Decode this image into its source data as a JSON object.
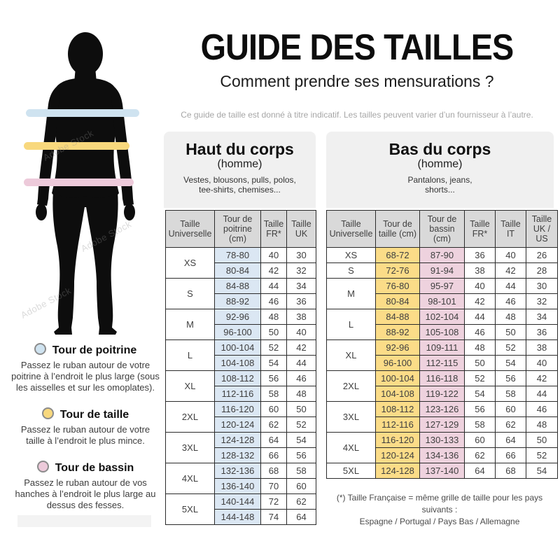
{
  "watermark": "Adobe Stock",
  "header": {
    "title": "GUIDE DES TAILLES",
    "subtitle": "Comment prendre ses mensurations ?",
    "disclaimer": "Ce guide de taille est donné à titre indicatif. Les tailles peuvent varier d’un fournisseur à l’autre."
  },
  "legend": {
    "items": [
      {
        "label": "Tour de poitrine",
        "color": "#cfe3f0",
        "description": "Passez le ruban autour de votre poitrine à l’endroit le plus large (sous les aisselles et sur les omoplates)."
      },
      {
        "label": "Tour de taille",
        "color": "#f8d87d",
        "description": "Passez le ruban autour de votre taille à l’endroit le plus mince."
      },
      {
        "label": "Tour de bassin",
        "color": "#edcada",
        "description": "Passez le ruban autour de vos hanches à l’endroit le plus large au dessus des fesses."
      }
    ]
  },
  "tables": {
    "upper": {
      "title": "Haut du corps",
      "subtitle": "(homme)",
      "description": "Vestes, blousons, pulls, polos, tee-shirts, chemises...",
      "columns": [
        "Taille Universelle",
        "Tour de poitrine (cm)",
        "Taille FR*",
        "Taille UK"
      ],
      "groups": [
        {
          "size": "XS",
          "rows": [
            [
              "78-80",
              "40",
              "30"
            ],
            [
              "80-84",
              "42",
              "32"
            ]
          ]
        },
        {
          "size": "S",
          "rows": [
            [
              "84-88",
              "44",
              "34"
            ],
            [
              "88-92",
              "46",
              "36"
            ]
          ]
        },
        {
          "size": "M",
          "rows": [
            [
              "92-96",
              "48",
              "38"
            ],
            [
              "96-100",
              "50",
              "40"
            ]
          ]
        },
        {
          "size": "L",
          "rows": [
            [
              "100-104",
              "52",
              "42"
            ],
            [
              "104-108",
              "54",
              "44"
            ]
          ]
        },
        {
          "size": "XL",
          "rows": [
            [
              "108-112",
              "56",
              "46"
            ],
            [
              "112-116",
              "58",
              "48"
            ]
          ]
        },
        {
          "size": "2XL",
          "rows": [
            [
              "116-120",
              "60",
              "50"
            ],
            [
              "120-124",
              "62",
              "52"
            ]
          ]
        },
        {
          "size": "3XL",
          "rows": [
            [
              "124-128",
              "64",
              "54"
            ],
            [
              "128-132",
              "66",
              "56"
            ]
          ]
        },
        {
          "size": "4XL",
          "rows": [
            [
              "132-136",
              "68",
              "58"
            ],
            [
              "136-140",
              "70",
              "60"
            ]
          ]
        },
        {
          "size": "5XL",
          "rows": [
            [
              "140-144",
              "72",
              "62"
            ],
            [
              "144-148",
              "74",
              "64"
            ]
          ]
        }
      ]
    },
    "lower": {
      "title": "Bas du corps",
      "subtitle": "(homme)",
      "description": "Pantalons, jeans, shorts...",
      "columns": [
        "Taille Universelle",
        "Tour de taille (cm)",
        "Tour de bassin (cm)",
        "Taille FR*",
        "Taille IT",
        "Taille UK / US"
      ],
      "groups": [
        {
          "size": "XS",
          "rows": [
            [
              "68-72",
              "87-90",
              "36",
              "40",
              "26"
            ]
          ]
        },
        {
          "size": "S",
          "rows": [
            [
              "72-76",
              "91-94",
              "38",
              "42",
              "28"
            ]
          ]
        },
        {
          "size": "M",
          "rows": [
            [
              "76-80",
              "95-97",
              "40",
              "44",
              "30"
            ],
            [
              "80-84",
              "98-101",
              "42",
              "46",
              "32"
            ]
          ]
        },
        {
          "size": "L",
          "rows": [
            [
              "84-88",
              "102-104",
              "44",
              "48",
              "34"
            ],
            [
              "88-92",
              "105-108",
              "46",
              "50",
              "36"
            ]
          ]
        },
        {
          "size": "XL",
          "rows": [
            [
              "92-96",
              "109-111",
              "48",
              "52",
              "38"
            ],
            [
              "96-100",
              "112-115",
              "50",
              "54",
              "40"
            ]
          ]
        },
        {
          "size": "2XL",
          "rows": [
            [
              "100-104",
              "116-118",
              "52",
              "56",
              "42"
            ],
            [
              "104-108",
              "119-122",
              "54",
              "58",
              "44"
            ]
          ]
        },
        {
          "size": "3XL",
          "rows": [
            [
              "108-112",
              "123-126",
              "56",
              "60",
              "46"
            ],
            [
              "112-116",
              "127-129",
              "58",
              "62",
              "48"
            ]
          ]
        },
        {
          "size": "4XL",
          "rows": [
            [
              "116-120",
              "130-133",
              "60",
              "64",
              "50"
            ],
            [
              "120-124",
              "134-136",
              "62",
              "66",
              "52"
            ]
          ]
        },
        {
          "size": "5XL",
          "rows": [
            [
              "124-128",
              "137-140",
              "64",
              "68",
              "54"
            ]
          ]
        }
      ]
    }
  },
  "footnote": {
    "line1": "(*) Taille Française = même grille de taille pour les pays suivants :",
    "line2": "Espagne / Portugal / Pays Bas / Allemagne"
  },
  "colors": {
    "chest_band": "#cfe3f0",
    "waist_band": "#f8d87d",
    "hip_band": "#edcada",
    "chest_cell": "#dbe7f3",
    "waist_cell": "#fbdc88",
    "hip_cell": "#eed2de",
    "header_cell": "#d9d9d9",
    "panel_bg": "#f0f0f0"
  }
}
